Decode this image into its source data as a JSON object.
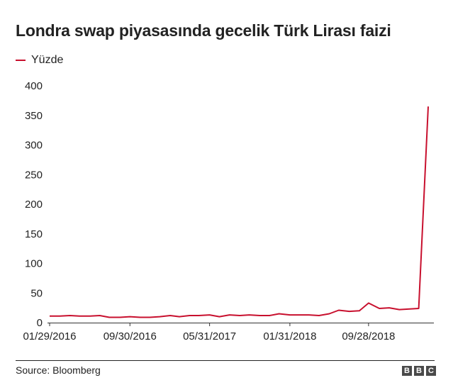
{
  "header": {
    "title": "Londra swap piyasasında gecelik Türk Lirası faizi"
  },
  "legend": {
    "label": "Yüzde"
  },
  "footer": {
    "source": "Source: Bloomberg",
    "logo_letters": [
      "B",
      "B",
      "C"
    ]
  },
  "colors": {
    "series": "#c8102e",
    "text": "#222222",
    "axis": "#333333"
  },
  "chart_data": {
    "type": "line",
    "title": "Londra swap piyasasında gecelik Türk Lirası faizi",
    "xlabel": "",
    "ylabel": "",
    "ylim": [
      0,
      400
    ],
    "yticks": [
      0,
      50,
      100,
      150,
      200,
      250,
      300,
      350,
      400
    ],
    "x_tick_labels": [
      "01/29/2016",
      "09/30/2016",
      "05/31/2017",
      "01/31/2018",
      "09/28/2018"
    ],
    "grid": false,
    "legend_position": "top-left",
    "series": [
      {
        "name": "Yüzde",
        "color": "#c8102e",
        "x": [
          "2016-01-29",
          "2016-02-29",
          "2016-03-31",
          "2016-04-29",
          "2016-05-31",
          "2016-06-30",
          "2016-07-29",
          "2016-08-31",
          "2016-09-30",
          "2016-10-31",
          "2016-11-30",
          "2016-12-30",
          "2017-01-31",
          "2017-02-28",
          "2017-03-31",
          "2017-04-28",
          "2017-05-31",
          "2017-06-30",
          "2017-07-31",
          "2017-08-31",
          "2017-09-29",
          "2017-10-31",
          "2017-11-30",
          "2017-12-29",
          "2018-01-31",
          "2018-02-28",
          "2018-03-30",
          "2018-04-30",
          "2018-05-31",
          "2018-06-29",
          "2018-07-31",
          "2018-08-31",
          "2018-09-28",
          "2018-10-31",
          "2018-11-30",
          "2018-12-31",
          "2019-01-31",
          "2019-02-28",
          "2019-03-29"
        ],
        "values": [
          11,
          11,
          12,
          11,
          11,
          12,
          9,
          9,
          10,
          9,
          9,
          10,
          12,
          10,
          12,
          12,
          13,
          10,
          13,
          12,
          13,
          12,
          12,
          15,
          13,
          13,
          13,
          12,
          15,
          21,
          19,
          20,
          33,
          24,
          25,
          22,
          23,
          24,
          365
        ]
      }
    ]
  }
}
